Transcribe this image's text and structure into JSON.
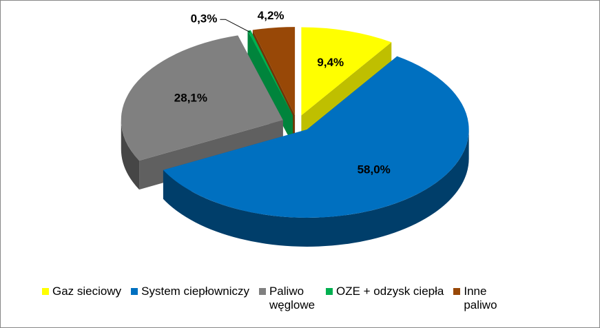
{
  "chart_data": {
    "type": "pie",
    "categories": [
      "Gaz sieciowy",
      "System ciepłowniczy",
      "Paliwo węglowe",
      "OZE + odzysk ciepła",
      "Inne paliwo"
    ],
    "values": [
      9.4,
      58.0,
      28.1,
      0.3,
      4.2
    ],
    "value_labels": [
      "9,4%",
      "58,0%",
      "28,1%",
      "0,3%",
      "4,2%"
    ],
    "colors": [
      "#ffff00",
      "#0070c0",
      "#808080",
      "#00b050",
      "#984807"
    ],
    "legend": "bottom"
  }
}
